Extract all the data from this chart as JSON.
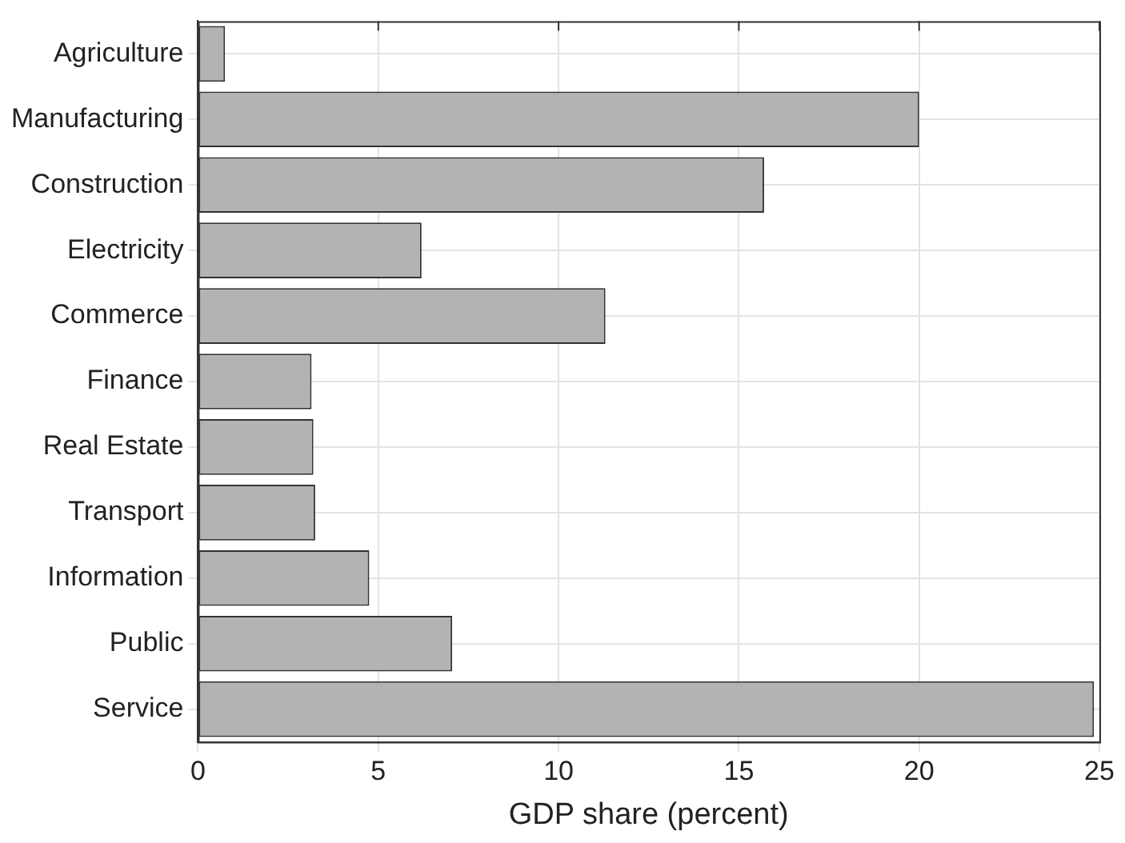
{
  "chart_data": {
    "type": "bar",
    "orientation": "horizontal",
    "xlabel": "GDP share (percent)",
    "categories": [
      "Agriculture",
      "Manufacturing",
      "Construction",
      "Electricity",
      "Commerce",
      "Finance",
      "Real Estate",
      "Transport",
      "Information",
      "Public",
      "Service"
    ],
    "values": [
      0.75,
      20,
      15.7,
      6.2,
      11.3,
      3.15,
      3.2,
      3.25,
      4.75,
      7.05,
      24.85
    ],
    "color": "#b3b3b3",
    "xlim": [
      0,
      25
    ],
    "xticks": [
      0,
      5,
      10,
      15,
      20,
      25
    ],
    "grid": true,
    "legend": false
  }
}
